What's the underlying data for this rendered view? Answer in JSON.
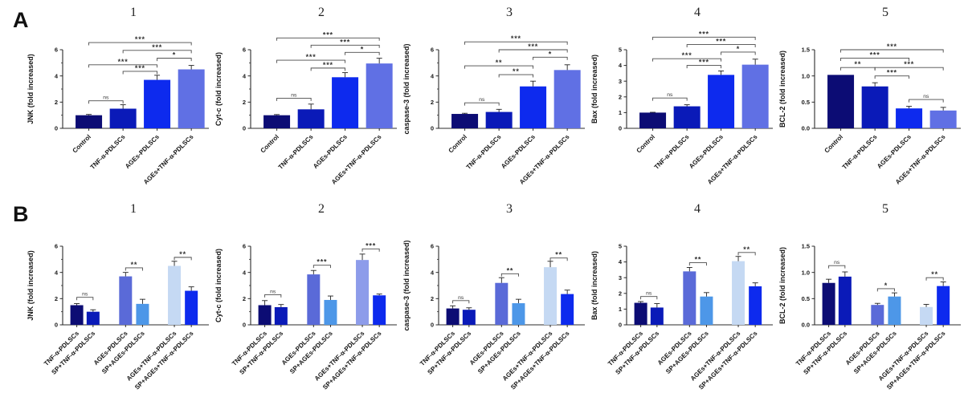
{
  "figure": {
    "background": "#ffffff",
    "accent_dark_navy": "#0c0c74",
    "accent_bright_blue": "#0d2aee"
  },
  "panels": [
    {
      "label": "A"
    },
    {
      "label": "B"
    }
  ],
  "chart_data": [
    {
      "panel": "A",
      "type": "bar",
      "title": "1",
      "ylabel": "JNK (fold increased)",
      "xlabel": "",
      "ylim": [
        0,
        6
      ],
      "yticks": [
        0,
        2,
        4,
        6
      ],
      "ytick_labels": [
        "0",
        "2",
        "4",
        "6"
      ],
      "categories": [
        "Control",
        "TNF-α-PDLSCs",
        "AGEs-PDLSCs",
        "AGEs+TNF-α-PDLSCs"
      ],
      "values": [
        1.0,
        1.5,
        3.7,
        4.5
      ],
      "errors": [
        0.06,
        0.3,
        0.35,
        0.3
      ],
      "bar_colors": [
        "#0c0c74",
        "#0a1ab8",
        "#0d2aee",
        "#6070e4"
      ],
      "significance": [
        {
          "a": 0,
          "b": 1,
          "label": "ns",
          "y": 2.1
        },
        {
          "a": 1,
          "b": 2,
          "label": "***",
          "y": 4.35
        },
        {
          "a": 0,
          "b": 2,
          "label": "***",
          "y": 4.85
        },
        {
          "a": 2,
          "b": 3,
          "label": "*",
          "y": 5.35
        },
        {
          "a": 1,
          "b": 3,
          "label": "***",
          "y": 5.95
        },
        {
          "a": 0,
          "b": 3,
          "label": "***",
          "y": 6.55
        }
      ]
    },
    {
      "panel": "A",
      "type": "bar",
      "title": "2",
      "ylabel": "Cyt-c (fold increased)",
      "xlabel": "",
      "ylim": [
        0,
        6
      ],
      "yticks": [
        0,
        2,
        4,
        6
      ],
      "ytick_labels": [
        "0",
        "2",
        "4",
        "6"
      ],
      "categories": [
        "Control",
        "TNF-α-PDLSCs",
        "AGEs-PDLSCs",
        "AGEs+TNF-α-PDLSCs"
      ],
      "values": [
        1.0,
        1.45,
        3.9,
        4.95
      ],
      "errors": [
        0.05,
        0.4,
        0.35,
        0.4
      ],
      "bar_colors": [
        "#0c0c74",
        "#0a1ab8",
        "#0d2aee",
        "#6070e4"
      ],
      "significance": [
        {
          "a": 0,
          "b": 1,
          "label": "ns",
          "y": 2.3
        },
        {
          "a": 1,
          "b": 2,
          "label": "***",
          "y": 4.6
        },
        {
          "a": 0,
          "b": 2,
          "label": "***",
          "y": 5.2
        },
        {
          "a": 2,
          "b": 3,
          "label": "*",
          "y": 5.8
        },
        {
          "a": 1,
          "b": 3,
          "label": "***",
          "y": 6.35
        },
        {
          "a": 0,
          "b": 3,
          "label": "***",
          "y": 6.9
        }
      ]
    },
    {
      "panel": "A",
      "type": "bar",
      "title": "3",
      "ylabel": "caspase-3 (fold increased)",
      "xlabel": "",
      "ylim": [
        0,
        6
      ],
      "yticks": [
        0,
        2,
        4,
        6
      ],
      "ytick_labels": [
        "0",
        "2",
        "4",
        "6"
      ],
      "categories": [
        "Control",
        "TNF-α-PDLSCs",
        "AGEs-PDLSCs",
        "AGEs+TNF-α-PDLSCs"
      ],
      "values": [
        1.1,
        1.25,
        3.2,
        4.45
      ],
      "errors": [
        0.05,
        0.2,
        0.4,
        0.4
      ],
      "bar_colors": [
        "#0c0c74",
        "#0a1ab8",
        "#0d2aee",
        "#6070e4"
      ],
      "significance": [
        {
          "a": 0,
          "b": 1,
          "label": "ns",
          "y": 1.95
        },
        {
          "a": 1,
          "b": 2,
          "label": "**",
          "y": 4.1
        },
        {
          "a": 0,
          "b": 2,
          "label": "**",
          "y": 4.77
        },
        {
          "a": 2,
          "b": 3,
          "label": "*",
          "y": 5.43
        },
        {
          "a": 1,
          "b": 3,
          "label": "***",
          "y": 6.0
        },
        {
          "a": 0,
          "b": 3,
          "label": "***",
          "y": 6.6
        }
      ]
    },
    {
      "panel": "A",
      "type": "bar",
      "title": "4",
      "ylabel": "Bax (fold increased)",
      "xlabel": "",
      "ylim": [
        0,
        5
      ],
      "yticks": [
        0,
        1,
        2,
        3,
        4,
        5
      ],
      "ytick_labels": [
        "0",
        "1",
        "2",
        "3",
        "4",
        "5"
      ],
      "categories": [
        "Control",
        "TNF-α-PDLSCs",
        "AGEs-PDLSCs",
        "AGEs+TNF-α-PDLSCs"
      ],
      "values": [
        1.0,
        1.4,
        3.4,
        4.05
      ],
      "errors": [
        0.02,
        0.1,
        0.25,
        0.35
      ],
      "bar_colors": [
        "#0c0c74",
        "#0a1ab8",
        "#0d2aee",
        "#6070e4"
      ],
      "significance": [
        {
          "a": 0,
          "b": 1,
          "label": "ns",
          "y": 1.93
        },
        {
          "a": 1,
          "b": 2,
          "label": "***",
          "y": 4.0
        },
        {
          "a": 0,
          "b": 2,
          "label": "***",
          "y": 4.43
        },
        {
          "a": 2,
          "b": 3,
          "label": "*",
          "y": 4.85
        },
        {
          "a": 1,
          "b": 3,
          "label": "***",
          "y": 5.33
        },
        {
          "a": 0,
          "b": 3,
          "label": "***",
          "y": 5.8
        }
      ]
    },
    {
      "panel": "A",
      "type": "bar",
      "title": "5",
      "ylabel": "BCL-2 (fold increased)",
      "xlabel": "",
      "ylim": [
        0,
        1.5
      ],
      "yticks": [
        0,
        0.5,
        1.0,
        1.5
      ],
      "ytick_labels": [
        "0.0",
        "0.5",
        "1.0",
        "1.5"
      ],
      "categories": [
        "Control",
        "TNF-α-PDLSCs",
        "AGEs-PDLSCs",
        "AGEs+TNF-α-PDLSCs"
      ],
      "values": [
        1.02,
        0.8,
        0.38,
        0.34
      ],
      "errors": [
        0.01,
        0.07,
        0.04,
        0.06
      ],
      "bar_colors": [
        "#0c0c74",
        "#0a1ab8",
        "#0d2aee",
        "#6070e4"
      ],
      "significance": [
        {
          "a": 2,
          "b": 3,
          "label": "ns",
          "y": 0.55
        },
        {
          "a": 1,
          "b": 2,
          "label": "***",
          "y": 1.0
        },
        {
          "a": 0,
          "b": 1,
          "label": "**",
          "y": 1.16
        },
        {
          "a": 1,
          "b": 3,
          "label": "***",
          "y": 1.16
        },
        {
          "a": 0,
          "b": 2,
          "label": "***",
          "y": 1.34
        },
        {
          "a": 0,
          "b": 3,
          "label": "***",
          "y": 1.5
        }
      ]
    },
    {
      "panel": "B",
      "type": "bar",
      "title": "1",
      "ylabel": "JNK (fold increased)",
      "xlabel": "",
      "ylim": [
        0,
        6
      ],
      "yticks": [
        0,
        2,
        4,
        6
      ],
      "ytick_labels": [
        "0",
        "2",
        "4",
        "6"
      ],
      "categories": [
        "TNF-α-PDLSCs",
        "SP+TNF-α-PDLSCs",
        "AGEs-PDLSCs",
        "SP+AGEs-PDLSCs",
        "AGEs+TNF-α-PDLSCs",
        "SP+AGEs+TNF-α-PDLSCs"
      ],
      "values": [
        1.5,
        1.0,
        3.7,
        1.6,
        4.5,
        2.6
      ],
      "errors": [
        0.12,
        0.15,
        0.3,
        0.35,
        0.35,
        0.3
      ],
      "bar_colors": [
        "#0c0c74",
        "#0a1ab8",
        "#5a6ad8",
        "#4d97e8",
        "#c5d9f3",
        "#0d2aee"
      ],
      "significance": [
        {
          "a": 0,
          "b": 1,
          "label": "ns",
          "y": 2.1
        },
        {
          "a": 2,
          "b": 3,
          "label": "**",
          "y": 4.35
        },
        {
          "a": 4,
          "b": 5,
          "label": "**",
          "y": 5.15
        }
      ]
    },
    {
      "panel": "B",
      "type": "bar",
      "title": "2",
      "ylabel": "Cyt-c (fold increased)",
      "xlabel": "",
      "ylim": [
        0,
        6
      ],
      "yticks": [
        0,
        2,
        4,
        6
      ],
      "ytick_labels": [
        "0",
        "2",
        "4",
        "6"
      ],
      "categories": [
        "TNF-α-PDLSCs",
        "SP+TNF-α-PDLSCs",
        "AGEs-PDLSCs",
        "SP+AGEs-PDLSCs",
        "AGEs+TNF-α-PDLSCs",
        "SP+AGEs+TNF-α-PDLSCs"
      ],
      "values": [
        1.5,
        1.35,
        3.85,
        1.9,
        4.95,
        2.25
      ],
      "errors": [
        0.35,
        0.2,
        0.3,
        0.3,
        0.45,
        0.1
      ],
      "bar_colors": [
        "#0c0c74",
        "#0a1ab8",
        "#5a6ad8",
        "#4d97e8",
        "#8d9cea",
        "#0d2aee"
      ],
      "significance": [
        {
          "a": 0,
          "b": 1,
          "label": "ns",
          "y": 2.3
        },
        {
          "a": 2,
          "b": 3,
          "label": "***",
          "y": 4.55
        },
        {
          "a": 4,
          "b": 5,
          "label": "***",
          "y": 5.8
        }
      ]
    },
    {
      "panel": "B",
      "type": "bar",
      "title": "3",
      "ylabel": "caspase-3 (fold increased)",
      "xlabel": "",
      "ylim": [
        0,
        6
      ],
      "yticks": [
        0,
        2,
        4,
        6
      ],
      "ytick_labels": [
        "0",
        "2",
        "4",
        "6"
      ],
      "categories": [
        "TNF-α-PDLSCs",
        "SP+TNF-α-PDLSCs",
        "AGEs-PDLSCs",
        "SP+AGEs-PDLSCs",
        "AGEs+TNF-α-PDLSCs",
        "SP+AGEs+TNF-α-PDLSCs"
      ],
      "values": [
        1.25,
        1.15,
        3.2,
        1.65,
        4.4,
        2.35
      ],
      "errors": [
        0.2,
        0.15,
        0.4,
        0.3,
        0.45,
        0.3
      ],
      "bar_colors": [
        "#0c0c74",
        "#0a1ab8",
        "#5a6ad8",
        "#4d97e8",
        "#c5d9f3",
        "#0d2aee"
      ],
      "significance": [
        {
          "a": 0,
          "b": 1,
          "label": "ns",
          "y": 1.85
        },
        {
          "a": 2,
          "b": 3,
          "label": "**",
          "y": 3.9
        },
        {
          "a": 4,
          "b": 5,
          "label": "**",
          "y": 5.1
        }
      ]
    },
    {
      "panel": "B",
      "type": "bar",
      "title": "4",
      "ylabel": "Bax (fold increased)",
      "xlabel": "",
      "ylim": [
        0,
        5
      ],
      "yticks": [
        0,
        1,
        2,
        3,
        4,
        5
      ],
      "ytick_labels": [
        "0",
        "1",
        "2",
        "3",
        "4",
        "5"
      ],
      "categories": [
        "TNF-α-PDLSCs",
        "SP+TNF-α-PDLSCs",
        "AGEs-PDLSCs",
        "SP+AGEs-PDLSCs",
        "AGEs+TNF-α-PDLSCs",
        "SP+AGEs+TNF-α-PDLSCs"
      ],
      "values": [
        1.4,
        1.1,
        3.4,
        1.8,
        4.05,
        2.45
      ],
      "errors": [
        0.08,
        0.25,
        0.25,
        0.25,
        0.3,
        0.22
      ],
      "bar_colors": [
        "#0c0c74",
        "#0a1ab8",
        "#5a6ad8",
        "#4d97e8",
        "#c5d9f3",
        "#0d2aee"
      ],
      "significance": [
        {
          "a": 0,
          "b": 1,
          "label": "ns",
          "y": 1.8
        },
        {
          "a": 2,
          "b": 3,
          "label": "**",
          "y": 3.95
        },
        {
          "a": 4,
          "b": 5,
          "label": "**",
          "y": 4.6
        }
      ]
    },
    {
      "panel": "B",
      "type": "bar",
      "title": "5",
      "ylabel": "BCL-2 (fold increased)",
      "xlabel": "",
      "ylim": [
        0,
        1.5
      ],
      "yticks": [
        0,
        0.5,
        1.0,
        1.5
      ],
      "ytick_labels": [
        "0.0",
        "0.5",
        "1.0",
        "1.5"
      ],
      "categories": [
        "TNF-α-PDLSCs",
        "SP+TNF-α-PDLSCs",
        "AGEs-PDLSCs",
        "SP+AGEs-PDLSCs",
        "AGEs+TNF-α-PDLSCs",
        "SP+AGEs+TNF-α-PDLSCs"
      ],
      "values": [
        0.8,
        0.92,
        0.38,
        0.54,
        0.34,
        0.74
      ],
      "errors": [
        0.07,
        0.09,
        0.03,
        0.07,
        0.05,
        0.08
      ],
      "bar_colors": [
        "#0c0c74",
        "#0a1ab8",
        "#5a6ad8",
        "#4d97e8",
        "#c5d9f3",
        "#0d2aee"
      ],
      "significance": [
        {
          "a": 0,
          "b": 1,
          "label": "ns",
          "y": 1.13
        },
        {
          "a": 2,
          "b": 3,
          "label": "*",
          "y": 0.69
        },
        {
          "a": 4,
          "b": 5,
          "label": "**",
          "y": 0.9
        }
      ]
    }
  ]
}
